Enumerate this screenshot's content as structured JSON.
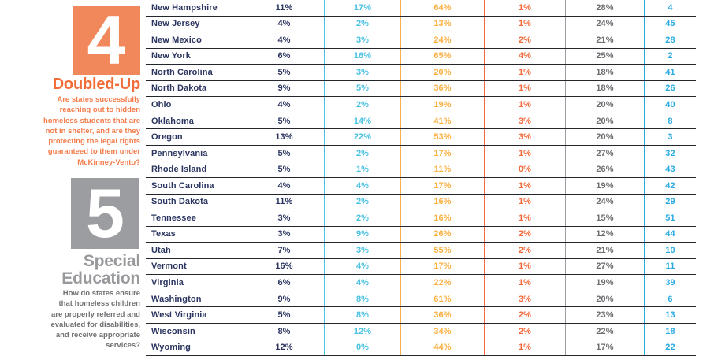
{
  "sections": [
    {
      "number": "4",
      "title": "Doubled-Up",
      "description": "Are states successfully\nreaching out to hidden\nhomeless students that are\nnot in shelter, and are they\nprotecting the legal rights\nguaranteed to them under\nMcKinney-Vento?"
    },
    {
      "number": "5",
      "title": "Special\nEducation",
      "description": "How do states ensure\nthat homeless children\nare properly referred and\nevaluated for disabilities,\nand receive appropriate\nservices?"
    }
  ],
  "table": {
    "rows": [
      {
        "state": "New Hampshire",
        "values": [
          "11%",
          "17%",
          "64%",
          "1%",
          "28%",
          "4"
        ]
      },
      {
        "state": "New Jersey",
        "values": [
          "4%",
          "2%",
          "13%",
          "1%",
          "24%",
          "45"
        ]
      },
      {
        "state": "New Mexico",
        "values": [
          "4%",
          "3%",
          "24%",
          "2%",
          "21%",
          "28"
        ]
      },
      {
        "state": "New York",
        "values": [
          "6%",
          "16%",
          "65%",
          "4%",
          "25%",
          "2"
        ]
      },
      {
        "state": "North Carolina",
        "values": [
          "5%",
          "3%",
          "20%",
          "1%",
          "18%",
          "41"
        ]
      },
      {
        "state": "North Dakota",
        "values": [
          "9%",
          "5%",
          "36%",
          "1%",
          "18%",
          "26"
        ]
      },
      {
        "state": "Ohio",
        "values": [
          "4%",
          "2%",
          "19%",
          "1%",
          "20%",
          "40"
        ]
      },
      {
        "state": "Oklahoma",
        "values": [
          "5%",
          "14%",
          "41%",
          "3%",
          "20%",
          "8"
        ]
      },
      {
        "state": "Oregon",
        "values": [
          "13%",
          "22%",
          "53%",
          "3%",
          "20%",
          "3"
        ]
      },
      {
        "state": "Pennsylvania",
        "values": [
          "5%",
          "2%",
          "17%",
          "1%",
          "27%",
          "32"
        ]
      },
      {
        "state": "Rhode Island",
        "values": [
          "5%",
          "1%",
          "11%",
          "0%",
          "26%",
          "43"
        ]
      },
      {
        "state": "South Carolina",
        "values": [
          "4%",
          "4%",
          "17%",
          "1%",
          "19%",
          "42"
        ]
      },
      {
        "state": "South Dakota",
        "values": [
          "11%",
          "2%",
          "16%",
          "1%",
          "24%",
          "29"
        ]
      },
      {
        "state": "Tennessee",
        "values": [
          "3%",
          "2%",
          "16%",
          "1%",
          "15%",
          "51"
        ]
      },
      {
        "state": "Texas",
        "values": [
          "3%",
          "9%",
          "26%",
          "2%",
          "12%",
          "44"
        ]
      },
      {
        "state": "Utah",
        "values": [
          "7%",
          "3%",
          "55%",
          "2%",
          "21%",
          "10"
        ]
      },
      {
        "state": "Vermont",
        "values": [
          "16%",
          "4%",
          "17%",
          "1%",
          "27%",
          "11"
        ]
      },
      {
        "state": "Virginia",
        "values": [
          "6%",
          "4%",
          "22%",
          "1%",
          "19%",
          "39"
        ]
      },
      {
        "state": "Washington",
        "values": [
          "9%",
          "8%",
          "61%",
          "3%",
          "20%",
          "6"
        ]
      },
      {
        "state": "West Virginia",
        "values": [
          "5%",
          "8%",
          "36%",
          "2%",
          "23%",
          "13"
        ]
      },
      {
        "state": "Wisconsin",
        "values": [
          "8%",
          "12%",
          "34%",
          "2%",
          "22%",
          "18"
        ]
      },
      {
        "state": "Wyoming",
        "values": [
          "12%",
          "0%",
          "44%",
          "1%",
          "17%",
          "22"
        ]
      }
    ]
  },
  "colors": {
    "section4_square": "#f0885c",
    "section4_title": "#f26c38",
    "section4_text": "#f47c4b",
    "section5_square": "#9b9da0",
    "section5_title": "#97999c",
    "section5_text": "#6f7174",
    "col_navy": "#2b3560",
    "col_cyan": "#4bc2e2",
    "col_yellow": "#fbb042",
    "col_orange": "#f26a3c",
    "col_gray": "#6d6e71",
    "col_blue_rank": "#29abe2",
    "row_line": "#25262b"
  }
}
